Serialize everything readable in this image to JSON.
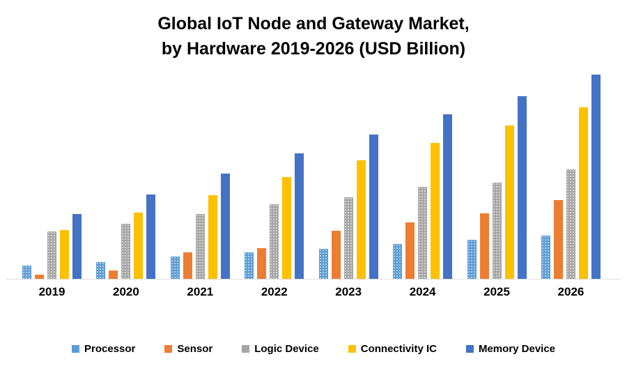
{
  "page": {
    "background": "#ffffff"
  },
  "chart_data": {
    "type": "bar",
    "title": "Global IoT Node and Gateway Market, by Hardware 2019-2026 (USD Billion)",
    "title_line1": "Global IoT Node and Gateway Market,",
    "title_line2": "by Hardware 2019-2026 (USD Billion)",
    "categories": [
      "2019",
      "2020",
      "2021",
      "2022",
      "2023",
      "2024",
      "2025",
      "2026"
    ],
    "series": [
      {
        "name": "Processor",
        "color": "#5B9BD5",
        "pattern": "dots",
        "values": [
          19,
          24,
          32,
          38,
          43,
          50,
          56,
          62
        ]
      },
      {
        "name": "Sensor",
        "color": "#ED7D31",
        "pattern": "solid",
        "values": [
          6,
          12,
          38,
          44,
          69,
          81,
          94,
          113
        ]
      },
      {
        "name": "Logic Device",
        "color": "#A5A5A5",
        "pattern": "dots",
        "values": [
          68,
          79,
          93,
          107,
          117,
          132,
          138,
          157
        ]
      },
      {
        "name": "Connectivity IC",
        "color": "#FFC000",
        "pattern": "solid",
        "values": [
          70,
          95,
          120,
          146,
          170,
          195,
          220,
          246
        ]
      },
      {
        "name": "Memory Device",
        "color": "#4472C4",
        "pattern": "solid",
        "values": [
          93,
          121,
          151,
          180,
          207,
          236,
          262,
          293
        ]
      }
    ],
    "xlabel": "",
    "ylabel": "",
    "ylim": [
      0,
      300
    ],
    "y_axis_visible": false,
    "gridlines": false,
    "legend_position": "bottom",
    "values_note": "Source chart has no visible y-axis scale; values are relative estimates proportional to rendered bar heights."
  }
}
